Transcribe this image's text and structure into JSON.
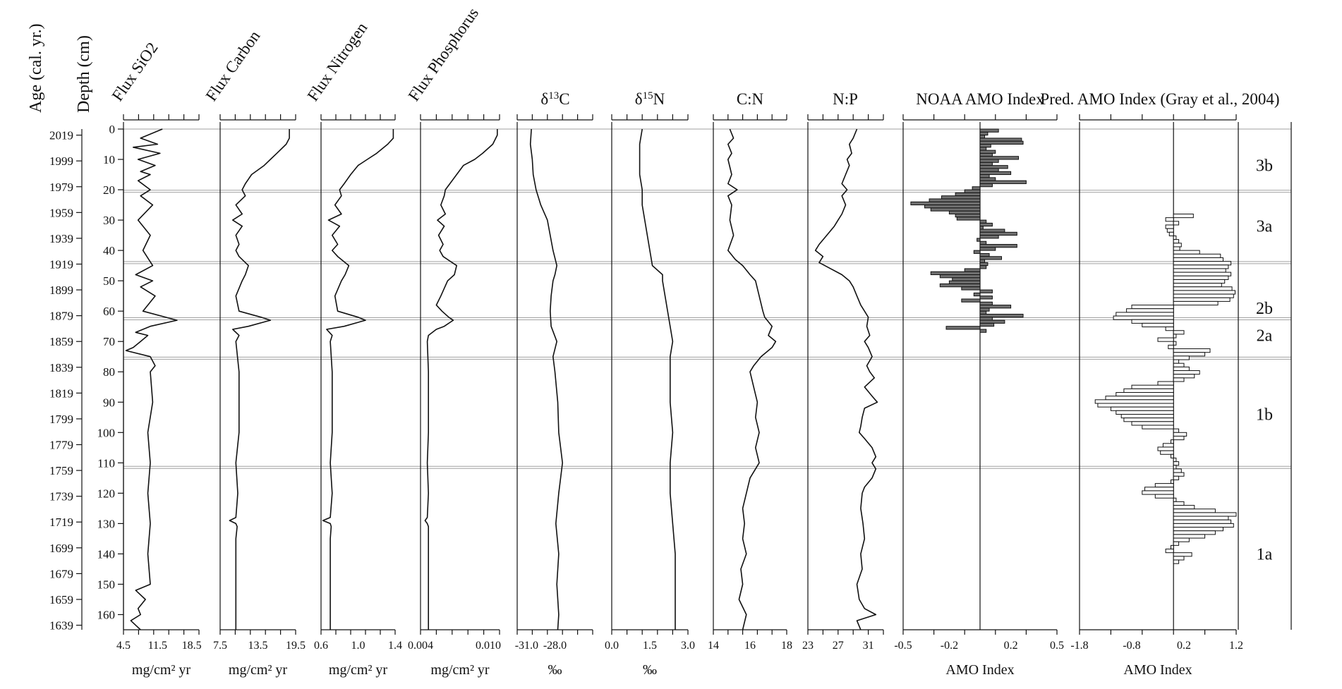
{
  "left_axes": {
    "age_label": "Age (cal. yr.)",
    "depth_label": "Depth (cm)",
    "age_ticks": [
      "2019",
      "1999",
      "1979",
      "1959",
      "1939",
      "1919",
      "1899",
      "1879",
      "1859",
      "1839",
      "1819",
      "1799",
      "1779",
      "1759",
      "1739",
      "1719",
      "1699",
      "1679",
      "1659",
      "1639"
    ],
    "depth_ticks": [
      "0",
      "10",
      "20",
      "30",
      "40",
      "50",
      "60",
      "70",
      "80",
      "90",
      "100",
      "110",
      "120",
      "130",
      "140",
      "150",
      "160"
    ]
  },
  "zones": {
    "labels": [
      "3b",
      "3a",
      "2b",
      "2a",
      "1b",
      "1a"
    ],
    "label_depths": [
      5,
      17,
      26,
      34.5,
      47,
      70
    ]
  },
  "chart_data": [
    {
      "type": "line",
      "title": "Flux SiO2",
      "xlabel": "mg/cm² yr",
      "xlim": [
        4.5,
        20.0
      ],
      "tick_labels": [
        "4.5",
        "11.5",
        "18.5"
      ],
      "depth": [
        0,
        3,
        5,
        6,
        8,
        10,
        12,
        14,
        15,
        17,
        20,
        22,
        25,
        30,
        35,
        40,
        45,
        48,
        50,
        52,
        55,
        60,
        63,
        65,
        67,
        68,
        70,
        72,
        73,
        75,
        78,
        80,
        90,
        100,
        110,
        120,
        130,
        140,
        150,
        152,
        155,
        158,
        160,
        162,
        165
      ],
      "values": [
        12.5,
        8,
        11.5,
        6.5,
        12,
        7.5,
        11,
        8,
        10,
        7.5,
        10,
        8,
        10.5,
        7.5,
        10,
        8.5,
        10.5,
        7,
        10.5,
        8,
        11,
        8.5,
        15.5,
        10,
        7,
        9.5,
        8,
        6.5,
        5,
        10,
        11,
        10,
        10.5,
        9.5,
        10,
        9.5,
        10,
        9.5,
        10,
        7,
        9,
        7.5,
        8,
        6,
        8
      ]
    },
    {
      "type": "line",
      "title": "Flux Carbon",
      "xlabel": "mg/cm² yr",
      "xlim": [
        7.5,
        19.5
      ],
      "tick_labels": [
        "7.5",
        "13.5",
        "19.5"
      ],
      "depth": [
        0,
        3,
        5,
        8,
        10,
        12,
        15,
        18,
        20,
        22,
        25,
        28,
        30,
        32,
        35,
        38,
        40,
        42,
        45,
        48,
        50,
        55,
        60,
        62,
        63,
        65,
        66,
        68,
        70,
        80,
        90,
        100,
        110,
        120,
        128,
        129,
        130,
        131,
        135,
        140,
        150,
        160,
        165
      ],
      "values": [
        18.5,
        18.5,
        18,
        16.5,
        15.5,
        14.5,
        12.5,
        11.5,
        11,
        11.5,
        10,
        11,
        9.5,
        11,
        10,
        10.5,
        10,
        10.5,
        12,
        11.5,
        11,
        10,
        10.5,
        14,
        15.5,
        12,
        9.5,
        10.5,
        10,
        10.5,
        10.5,
        10.5,
        10,
        10.3,
        10,
        9,
        10,
        10.2,
        10,
        10,
        10,
        10,
        10
      ]
    },
    {
      "type": "line",
      "title": "Flux Nitrogen",
      "xlabel": "mg/cm² yr",
      "xlim": [
        0.6,
        1.4
      ],
      "tick_labels": [
        "0.6",
        "1.0",
        "1.4"
      ],
      "depth": [
        0,
        3,
        5,
        8,
        10,
        12,
        15,
        18,
        20,
        22,
        25,
        28,
        30,
        32,
        35,
        38,
        40,
        42,
        45,
        48,
        50,
        55,
        60,
        62,
        63,
        65,
        66,
        68,
        70,
        80,
        90,
        100,
        110,
        120,
        128,
        129,
        130,
        131,
        135,
        140,
        150,
        160,
        165
      ],
      "values": [
        1.38,
        1.38,
        1.32,
        1.2,
        1.1,
        1.0,
        0.92,
        0.85,
        0.8,
        0.82,
        0.75,
        0.82,
        0.68,
        0.8,
        0.72,
        0.78,
        0.72,
        0.78,
        0.9,
        0.86,
        0.82,
        0.75,
        0.78,
        1.0,
        1.08,
        0.85,
        0.66,
        0.72,
        0.7,
        0.72,
        0.72,
        0.72,
        0.7,
        0.72,
        0.7,
        0.62,
        0.7,
        0.71,
        0.7,
        0.7,
        0.7,
        0.7,
        0.7
      ]
    },
    {
      "type": "line",
      "title": "Flux Phosphorus",
      "xlabel": "mg/cm² yr",
      "xlim": [
        0.004,
        0.011
      ],
      "tick_labels": [
        "0.004",
        "0.010"
      ],
      "depth": [
        0,
        2,
        5,
        8,
        10,
        12,
        15,
        18,
        20,
        22,
        25,
        28,
        30,
        32,
        35,
        38,
        40,
        42,
        45,
        48,
        50,
        55,
        58,
        60,
        62,
        63,
        65,
        66,
        68,
        70,
        80,
        90,
        100,
        110,
        120,
        128,
        129,
        130,
        131,
        135,
        140,
        150,
        160,
        165
      ],
      "values": [
        0.0108,
        0.0108,
        0.0104,
        0.0095,
        0.0088,
        0.0078,
        0.0072,
        0.0066,
        0.0062,
        0.0061,
        0.0058,
        0.0062,
        0.0055,
        0.0061,
        0.0056,
        0.006,
        0.0057,
        0.006,
        0.0072,
        0.007,
        0.0064,
        0.0058,
        0.0054,
        0.0059,
        0.0065,
        0.0069,
        0.0061,
        0.0054,
        0.0047,
        0.0046,
        0.0047,
        0.0047,
        0.0047,
        0.0046,
        0.0047,
        0.0046,
        0.0044,
        0.0046,
        0.0047,
        0.0047,
        0.0047,
        0.0047,
        0.0047,
        0.0047
      ]
    },
    {
      "type": "line",
      "title": "δ13C",
      "title_main": "δ",
      "title_sup": "13",
      "title_tail": "C",
      "xlabel": "‰",
      "xlim": [
        -32.0,
        -24.0
      ],
      "tick_labels": [
        "-31.0",
        "-28.0"
      ],
      "depth": [
        0,
        5,
        10,
        15,
        20,
        25,
        30,
        35,
        40,
        45,
        48,
        50,
        55,
        60,
        65,
        70,
        75,
        80,
        90,
        100,
        110,
        120,
        130,
        140,
        150,
        160,
        165
      ],
      "values": [
        -30.5,
        -30.6,
        -30.4,
        -30.3,
        -30.0,
        -29.5,
        -28.8,
        -28.5,
        -28.2,
        -27.8,
        -28.0,
        -28.2,
        -28.4,
        -28.5,
        -28.4,
        -27.8,
        -28.2,
        -28.0,
        -27.7,
        -27.6,
        -27.2,
        -27.6,
        -27.9,
        -27.6,
        -27.8,
        -27.6,
        -27.7
      ]
    },
    {
      "type": "line",
      "title": "δ15N",
      "title_main": "δ",
      "title_sup": "15",
      "title_tail": "N",
      "xlabel": "‰",
      "xlim": [
        0.0,
        3.0
      ],
      "tick_labels": [
        "0.0",
        "1.5",
        "3.0"
      ],
      "depth": [
        0,
        5,
        10,
        15,
        20,
        25,
        30,
        35,
        40,
        45,
        48,
        50,
        55,
        60,
        65,
        70,
        75,
        80,
        90,
        100,
        110,
        120,
        130,
        140,
        150,
        160,
        165
      ],
      "values": [
        1.2,
        1.1,
        1.1,
        1.1,
        1.2,
        1.2,
        1.3,
        1.4,
        1.5,
        1.6,
        2.0,
        2.0,
        2.1,
        2.2,
        2.3,
        2.4,
        2.3,
        2.3,
        2.3,
        2.4,
        2.3,
        2.3,
        2.4,
        2.5,
        2.5,
        2.5,
        2.5
      ]
    },
    {
      "type": "line",
      "title": "C:N",
      "xlabel": "",
      "xlim": [
        14,
        18
      ],
      "tick_labels": [
        "14",
        "16",
        "18"
      ],
      "depth": [
        0,
        3,
        5,
        8,
        10,
        15,
        18,
        20,
        22,
        25,
        30,
        35,
        40,
        43,
        45,
        48,
        50,
        55,
        60,
        62,
        65,
        68,
        70,
        72,
        75,
        78,
        80,
        85,
        90,
        95,
        100,
        105,
        110,
        115,
        120,
        125,
        130,
        135,
        140,
        145,
        150,
        155,
        160,
        165
      ],
      "values": [
        14.9,
        15.1,
        14.8,
        15.0,
        14.8,
        15.0,
        14.8,
        15.3,
        14.8,
        15.0,
        14.9,
        15.1,
        14.8,
        15.2,
        15.6,
        16.0,
        16.3,
        16.5,
        16.7,
        16.8,
        17.2,
        17.0,
        17.4,
        17.2,
        16.6,
        16.2,
        16.0,
        16.2,
        16.4,
        16.3,
        16.5,
        16.3,
        16.5,
        16.0,
        15.8,
        15.6,
        15.7,
        15.6,
        15.8,
        15.5,
        15.6,
        15.4,
        15.8,
        15.6
      ]
    },
    {
      "type": "line",
      "title": "N:P",
      "xlabel": "",
      "xlim": [
        23,
        33
      ],
      "tick_labels": [
        "23",
        "27",
        "31"
      ],
      "depth": [
        0,
        3,
        5,
        8,
        10,
        12,
        15,
        18,
        20,
        22,
        25,
        28,
        30,
        32,
        35,
        38,
        40,
        42,
        44,
        46,
        48,
        50,
        52,
        55,
        58,
        60,
        62,
        65,
        68,
        70,
        72,
        75,
        78,
        80,
        82,
        85,
        88,
        90,
        92,
        95,
        98,
        100,
        102,
        105,
        108,
        110,
        112,
        115,
        118,
        120,
        125,
        130,
        135,
        140,
        145,
        150,
        155,
        158,
        160,
        162,
        165
      ],
      "values": [
        29.5,
        29,
        28.5,
        28.8,
        28.2,
        28.5,
        28.0,
        27.5,
        28.2,
        27.5,
        28.0,
        27.5,
        27.0,
        26.5,
        25.5,
        24.5,
        24.0,
        25.0,
        24.5,
        26.0,
        27.5,
        28.5,
        29.0,
        29.5,
        30.0,
        30.5,
        31.0,
        30.8,
        31.2,
        30.5,
        31.0,
        31.5,
        30.8,
        31.2,
        31.8,
        30.5,
        31.5,
        32.2,
        30.5,
        30.2,
        30.0,
        29.8,
        30.5,
        31.5,
        32.0,
        31.5,
        32.0,
        31.5,
        30.5,
        30.2,
        30.0,
        30.3,
        30.5,
        30.0,
        30.2,
        29.5,
        29.8,
        30.5,
        32.0,
        29.5,
        30.0
      ]
    },
    {
      "type": "bar",
      "title": "NOAA AMO Index",
      "xlabel": "AMO Index",
      "xlim": [
        -0.5,
        0.5
      ],
      "tick_labels": [
        "-0.5",
        "-0.2",
        "0.2",
        "0.5"
      ],
      "orientation": "horizontal",
      "fill": "#707070",
      "depth_start": 0,
      "depth_step": 1.0,
      "values": [
        0.12,
        0.05,
        0.03,
        0.27,
        0.28,
        0.07,
        0.04,
        0.1,
        0.08,
        0.25,
        0.12,
        0.08,
        0.18,
        0.12,
        0.2,
        0.06,
        0.1,
        0.3,
        0.08,
        -0.05,
        -0.1,
        -0.16,
        -0.25,
        -0.33,
        -0.45,
        -0.36,
        -0.32,
        -0.2,
        -0.16,
        -0.15,
        0.04,
        0.08,
        0.02,
        0.16,
        0.24,
        0.12,
        -0.02,
        0.04,
        0.24,
        0.1,
        -0.04,
        0.06,
        0.14,
        0.03,
        0.05,
        0.04,
        -0.1,
        -0.32,
        -0.26,
        -0.18,
        -0.2,
        -0.26,
        -0.12,
        0.08,
        -0.04,
        0.08,
        -0.12,
        0.08,
        0.2,
        0.06,
        0.04,
        0.28,
        0.08,
        0.16,
        0.09,
        -0.22,
        0.04
      ]
    },
    {
      "type": "bar",
      "title": "Pred. AMO Index (Gray et al., 2004)",
      "xlabel": "AMO Index",
      "xlim": [
        -1.8,
        1.2
      ],
      "tick_labels": [
        "-1.8",
        "-0.8",
        "0.2",
        "1.2"
      ],
      "orientation": "horizontal",
      "fill": "#ffffff",
      "depth_start": 28,
      "depth_step": 1.2,
      "values": [
        0.38,
        -0.15,
        0.1,
        -0.15,
        -0.12,
        -0.08,
        0.05,
        0.1,
        0.15,
        0.12,
        0.5,
        0.9,
        0.95,
        1.1,
        1.05,
        1.0,
        1.1,
        1.05,
        0.98,
        0.92,
        1.12,
        1.18,
        1.15,
        1.08,
        0.85,
        -0.8,
        -0.9,
        -1.1,
        -1.15,
        -0.8,
        -0.6,
        -0.15,
        0.2,
        0.05,
        -0.3,
        0.05,
        -0.1,
        0.7,
        0.6,
        0.3,
        0.1,
        0.2,
        0.3,
        0.5,
        0.4,
        0.2,
        -0.3,
        -0.8,
        -0.95,
        -1.1,
        -1.3,
        -1.5,
        -1.45,
        -1.2,
        -1.1,
        -1.0,
        -0.95,
        -0.8,
        -0.6,
        0.1,
        0.25,
        0.2,
        -0.05,
        -0.2,
        -0.3,
        -0.25,
        -0.05,
        0.05,
        0.1,
        0.05,
        0.15,
        0.2,
        0.1,
        -0.05,
        -0.35,
        -0.55,
        -0.6,
        -0.35,
        0.05,
        0.2,
        0.4,
        0.8,
        1.2,
        1.05,
        1.1,
        1.15,
        0.95,
        0.8,
        0.6,
        0.3,
        0.1,
        -0.05,
        -0.15,
        0.35,
        0.2,
        0.1
      ]
    }
  ]
}
